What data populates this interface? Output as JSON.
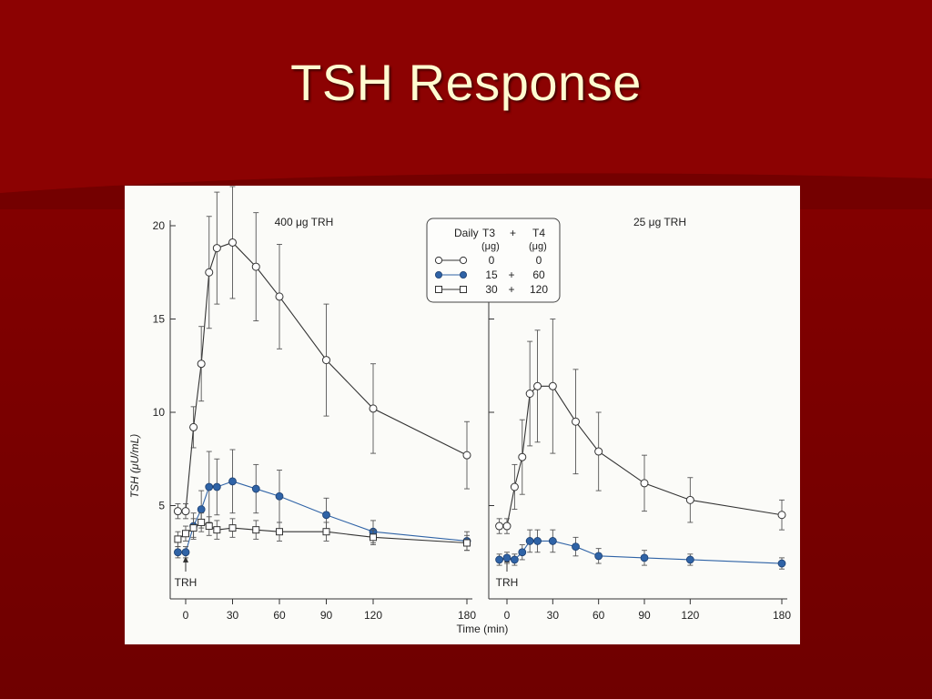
{
  "slide": {
    "title": "TSH Response"
  },
  "chart_data": {
    "type": "line",
    "ylabel": "TSH (μU/mL)",
    "xlabel": "Time (min)",
    "yticks": [
      5,
      10,
      15,
      20
    ],
    "ylim": [
      0,
      20
    ],
    "colors": {
      "open_circle": "#333333",
      "filled_circle": "#2f63a6",
      "open_square": "#333333"
    },
    "legend": {
      "header": {
        "label": "Daily",
        "col1": "T3",
        "plus": "+",
        "col2": "T4",
        "unit": "(μg)"
      },
      "rows": [
        {
          "marker": "open-circle",
          "t3": "0",
          "plus": "",
          "t4": "0"
        },
        {
          "marker": "filled-circle",
          "t3": "15",
          "plus": "+",
          "t4": "60"
        },
        {
          "marker": "open-square",
          "t3": "30",
          "plus": "+",
          "t4": "120"
        }
      ]
    },
    "panels": [
      {
        "title": "400 μg TRH",
        "trh_marker": "TRH",
        "xticks": [
          0,
          30,
          60,
          90,
          120,
          180
        ],
        "xticklabels": [
          "0",
          "30",
          "60",
          "90",
          "120",
          "180"
        ],
        "series": [
          {
            "marker": "open-circle",
            "x": [
              -5,
              0,
              5,
              10,
              15,
              20,
              30,
              45,
              60,
              90,
              120,
              180
            ],
            "y": [
              4.7,
              4.7,
              9.2,
              12.6,
              17.5,
              18.8,
              19.1,
              17.8,
              16.2,
              12.8,
              10.2,
              7.7
            ],
            "err": [
              0.4,
              0.4,
              1.1,
              2.0,
              3.0,
              3.0,
              3.0,
              2.9,
              2.8,
              3.0,
              2.4,
              1.8
            ]
          },
          {
            "marker": "filled-circle",
            "x": [
              -5,
              0,
              5,
              10,
              15,
              20,
              30,
              45,
              60,
              90,
              120,
              180
            ],
            "y": [
              2.5,
              2.5,
              3.9,
              4.8,
              6.0,
              6.0,
              6.3,
              5.9,
              5.5,
              4.5,
              3.6,
              3.1
            ],
            "err": [
              0.3,
              0.3,
              0.7,
              1.0,
              1.9,
              1.5,
              1.7,
              1.3,
              1.4,
              0.9,
              0.6,
              0.5
            ]
          },
          {
            "marker": "open-square",
            "x": [
              -5,
              0,
              5,
              10,
              15,
              20,
              30,
              45,
              60,
              90,
              120,
              180
            ],
            "y": [
              3.2,
              3.5,
              3.8,
              4.1,
              3.9,
              3.7,
              3.8,
              3.7,
              3.6,
              3.6,
              3.3,
              3.0
            ],
            "err": [
              0.4,
              0.4,
              0.5,
              0.5,
              0.5,
              0.5,
              0.5,
              0.5,
              0.5,
              0.5,
              0.4,
              0.4
            ]
          }
        ]
      },
      {
        "title": "25 μg TRH",
        "trh_marker": "TRH",
        "xticks": [
          0,
          30,
          60,
          90,
          120,
          180
        ],
        "xticklabels": [
          "0",
          "30",
          "60",
          "90",
          "120",
          "180"
        ],
        "series": [
          {
            "marker": "open-circle",
            "x": [
              -5,
              0,
              5,
              10,
              15,
              20,
              30,
              45,
              60,
              90,
              120,
              180
            ],
            "y": [
              3.9,
              3.9,
              6.0,
              7.6,
              11.0,
              11.4,
              11.4,
              9.5,
              7.9,
              6.2,
              5.3,
              4.5
            ],
            "err": [
              0.4,
              0.4,
              1.2,
              2.0,
              2.8,
              3.0,
              3.6,
              2.8,
              2.1,
              1.5,
              1.2,
              0.8
            ]
          },
          {
            "marker": "filled-circle",
            "x": [
              -5,
              0,
              5,
              10,
              15,
              20,
              30,
              45,
              60,
              90,
              120,
              180
            ],
            "y": [
              2.1,
              2.2,
              2.1,
              2.5,
              3.1,
              3.1,
              3.1,
              2.8,
              2.3,
              2.2,
              2.1,
              1.9
            ],
            "err": [
              0.3,
              0.3,
              0.3,
              0.4,
              0.6,
              0.6,
              0.6,
              0.5,
              0.4,
              0.4,
              0.3,
              0.3
            ]
          }
        ]
      }
    ]
  }
}
